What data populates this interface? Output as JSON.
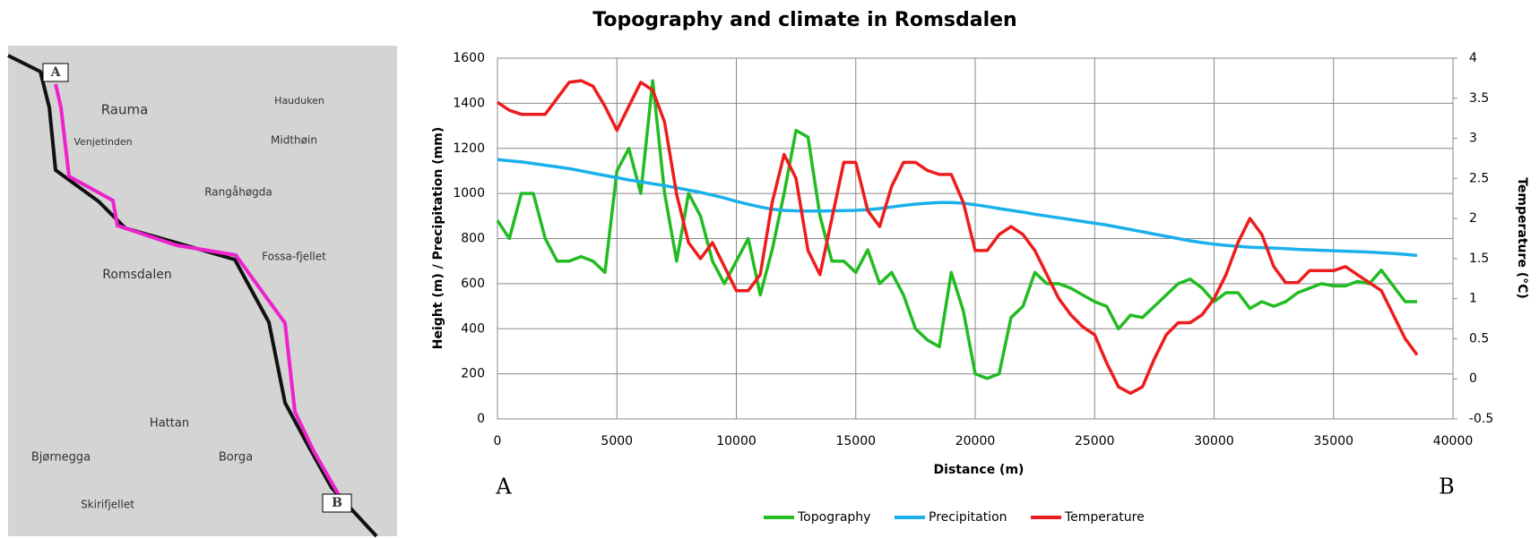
{
  "map": {
    "labels": [
      "A",
      "B",
      "Rauma",
      "Venjetinden",
      "Hauduken",
      "Midthøin",
      "Rangåhøgda",
      "Romsdalen",
      "Fossa-fjellet",
      "Hattan",
      "Borga",
      "Bjørnegga",
      "Skirifjellet"
    ]
  },
  "chart_data": {
    "type": "line",
    "title": "Topography and climate in Romsdalen",
    "x_label": "Distance (m)",
    "y_label": "Height (m) / Precipitation (mm)",
    "y2_label": "Temperature (°C)",
    "annotations": [
      "A",
      "B"
    ],
    "x": [
      0,
      500,
      1000,
      1500,
      2000,
      2500,
      3000,
      3500,
      4000,
      4500,
      5000,
      5500,
      6000,
      6500,
      7000,
      7500,
      8000,
      8500,
      9000,
      9500,
      10000,
      10500,
      11000,
      11500,
      12000,
      12500,
      13000,
      13500,
      14000,
      14500,
      15000,
      15500,
      16000,
      16500,
      17000,
      17500,
      18000,
      18500,
      19000,
      19500,
      20000,
      20500,
      21000,
      21500,
      22000,
      22500,
      23000,
      23500,
      24000,
      24500,
      25000,
      25500,
      26000,
      26500,
      27000,
      27500,
      28000,
      28500,
      29000,
      29500,
      30000,
      30500,
      31000,
      31500,
      32000,
      32500,
      33000,
      33500,
      34000,
      34500,
      35000,
      35500,
      36000,
      36500,
      37000,
      37500,
      38000,
      38500
    ],
    "series": [
      {
        "name": "Topography",
        "color": "#22bb22",
        "values": [
          880,
          800,
          1000,
          1000,
          800,
          700,
          700,
          720,
          700,
          650,
          1100,
          1200,
          1000,
          1500,
          1000,
          700,
          1000,
          900,
          700,
          600,
          700,
          800,
          550,
          750,
          1000,
          1280,
          1250,
          900,
          700,
          700,
          650,
          750,
          600,
          650,
          550,
          400,
          350,
          320,
          650,
          480,
          200,
          180,
          200,
          450,
          500,
          650,
          600,
          600,
          580,
          550,
          520,
          500,
          400,
          460,
          450,
          500,
          550,
          600,
          620,
          580,
          520,
          560,
          560,
          490,
          520,
          500,
          520,
          560,
          580,
          600,
          590,
          590,
          610,
          600,
          660,
          590,
          520,
          520
        ]
      },
      {
        "name": "Precipitation",
        "color": "#19b0ec",
        "values": [
          1150,
          1145,
          1140,
          1133,
          1125,
          1118,
          1110,
          1100,
          1090,
          1080,
          1070,
          1060,
          1052,
          1043,
          1035,
          1025,
          1015,
          1005,
          993,
          980,
          965,
          952,
          940,
          930,
          925,
          923,
          922,
          922,
          923,
          924,
          925,
          928,
          933,
          940,
          947,
          953,
          957,
          960,
          960,
          957,
          950,
          942,
          933,
          925,
          917,
          908,
          900,
          892,
          884,
          876,
          868,
          860,
          850,
          840,
          830,
          820,
          810,
          800,
          790,
          782,
          775,
          770,
          766,
          762,
          760,
          758,
          755,
          752,
          750,
          748,
          746,
          744,
          742,
          740,
          737,
          734,
          730,
          725
        ]
      },
      {
        "name": "Temperature",
        "color": "#ee1c1c",
        "axis": "y2",
        "values": [
          3.45,
          3.35,
          3.3,
          3.3,
          3.3,
          3.5,
          3.7,
          3.72,
          3.65,
          3.4,
          3.1,
          3.4,
          3.7,
          3.6,
          3.2,
          2.3,
          1.7,
          1.5,
          1.7,
          1.4,
          1.1,
          1.1,
          1.3,
          2.2,
          2.8,
          2.5,
          1.6,
          1.3,
          2.0,
          2.7,
          2.7,
          2.1,
          1.9,
          2.4,
          2.7,
          2.7,
          2.6,
          2.55,
          2.55,
          2.2,
          1.6,
          1.6,
          1.8,
          1.9,
          1.8,
          1.6,
          1.3,
          1.0,
          0.8,
          0.65,
          0.55,
          0.2,
          -0.1,
          -0.18,
          -0.1,
          0.25,
          0.55,
          0.7,
          0.7,
          0.8,
          1.0,
          1.3,
          1.7,
          2.0,
          1.8,
          1.4,
          1.2,
          1.2,
          1.35,
          1.35,
          1.35,
          1.4,
          1.3,
          1.2,
          1.1,
          0.8,
          0.5,
          0.3
        ]
      }
    ],
    "xlim": [
      0,
      40000
    ],
    "xticks": [
      0,
      5000,
      10000,
      15000,
      20000,
      25000,
      30000,
      35000,
      40000
    ],
    "ylim": [
      0,
      1600
    ],
    "yticks": [
      0,
      200,
      400,
      600,
      800,
      1000,
      1200,
      1400,
      1600
    ],
    "y2lim": [
      -0.5,
      4
    ],
    "y2ticks": [
      -0.5,
      0,
      0.5,
      1,
      1.5,
      2,
      2.5,
      3,
      3.5,
      4
    ],
    "grid": true,
    "legend": "bottom"
  }
}
